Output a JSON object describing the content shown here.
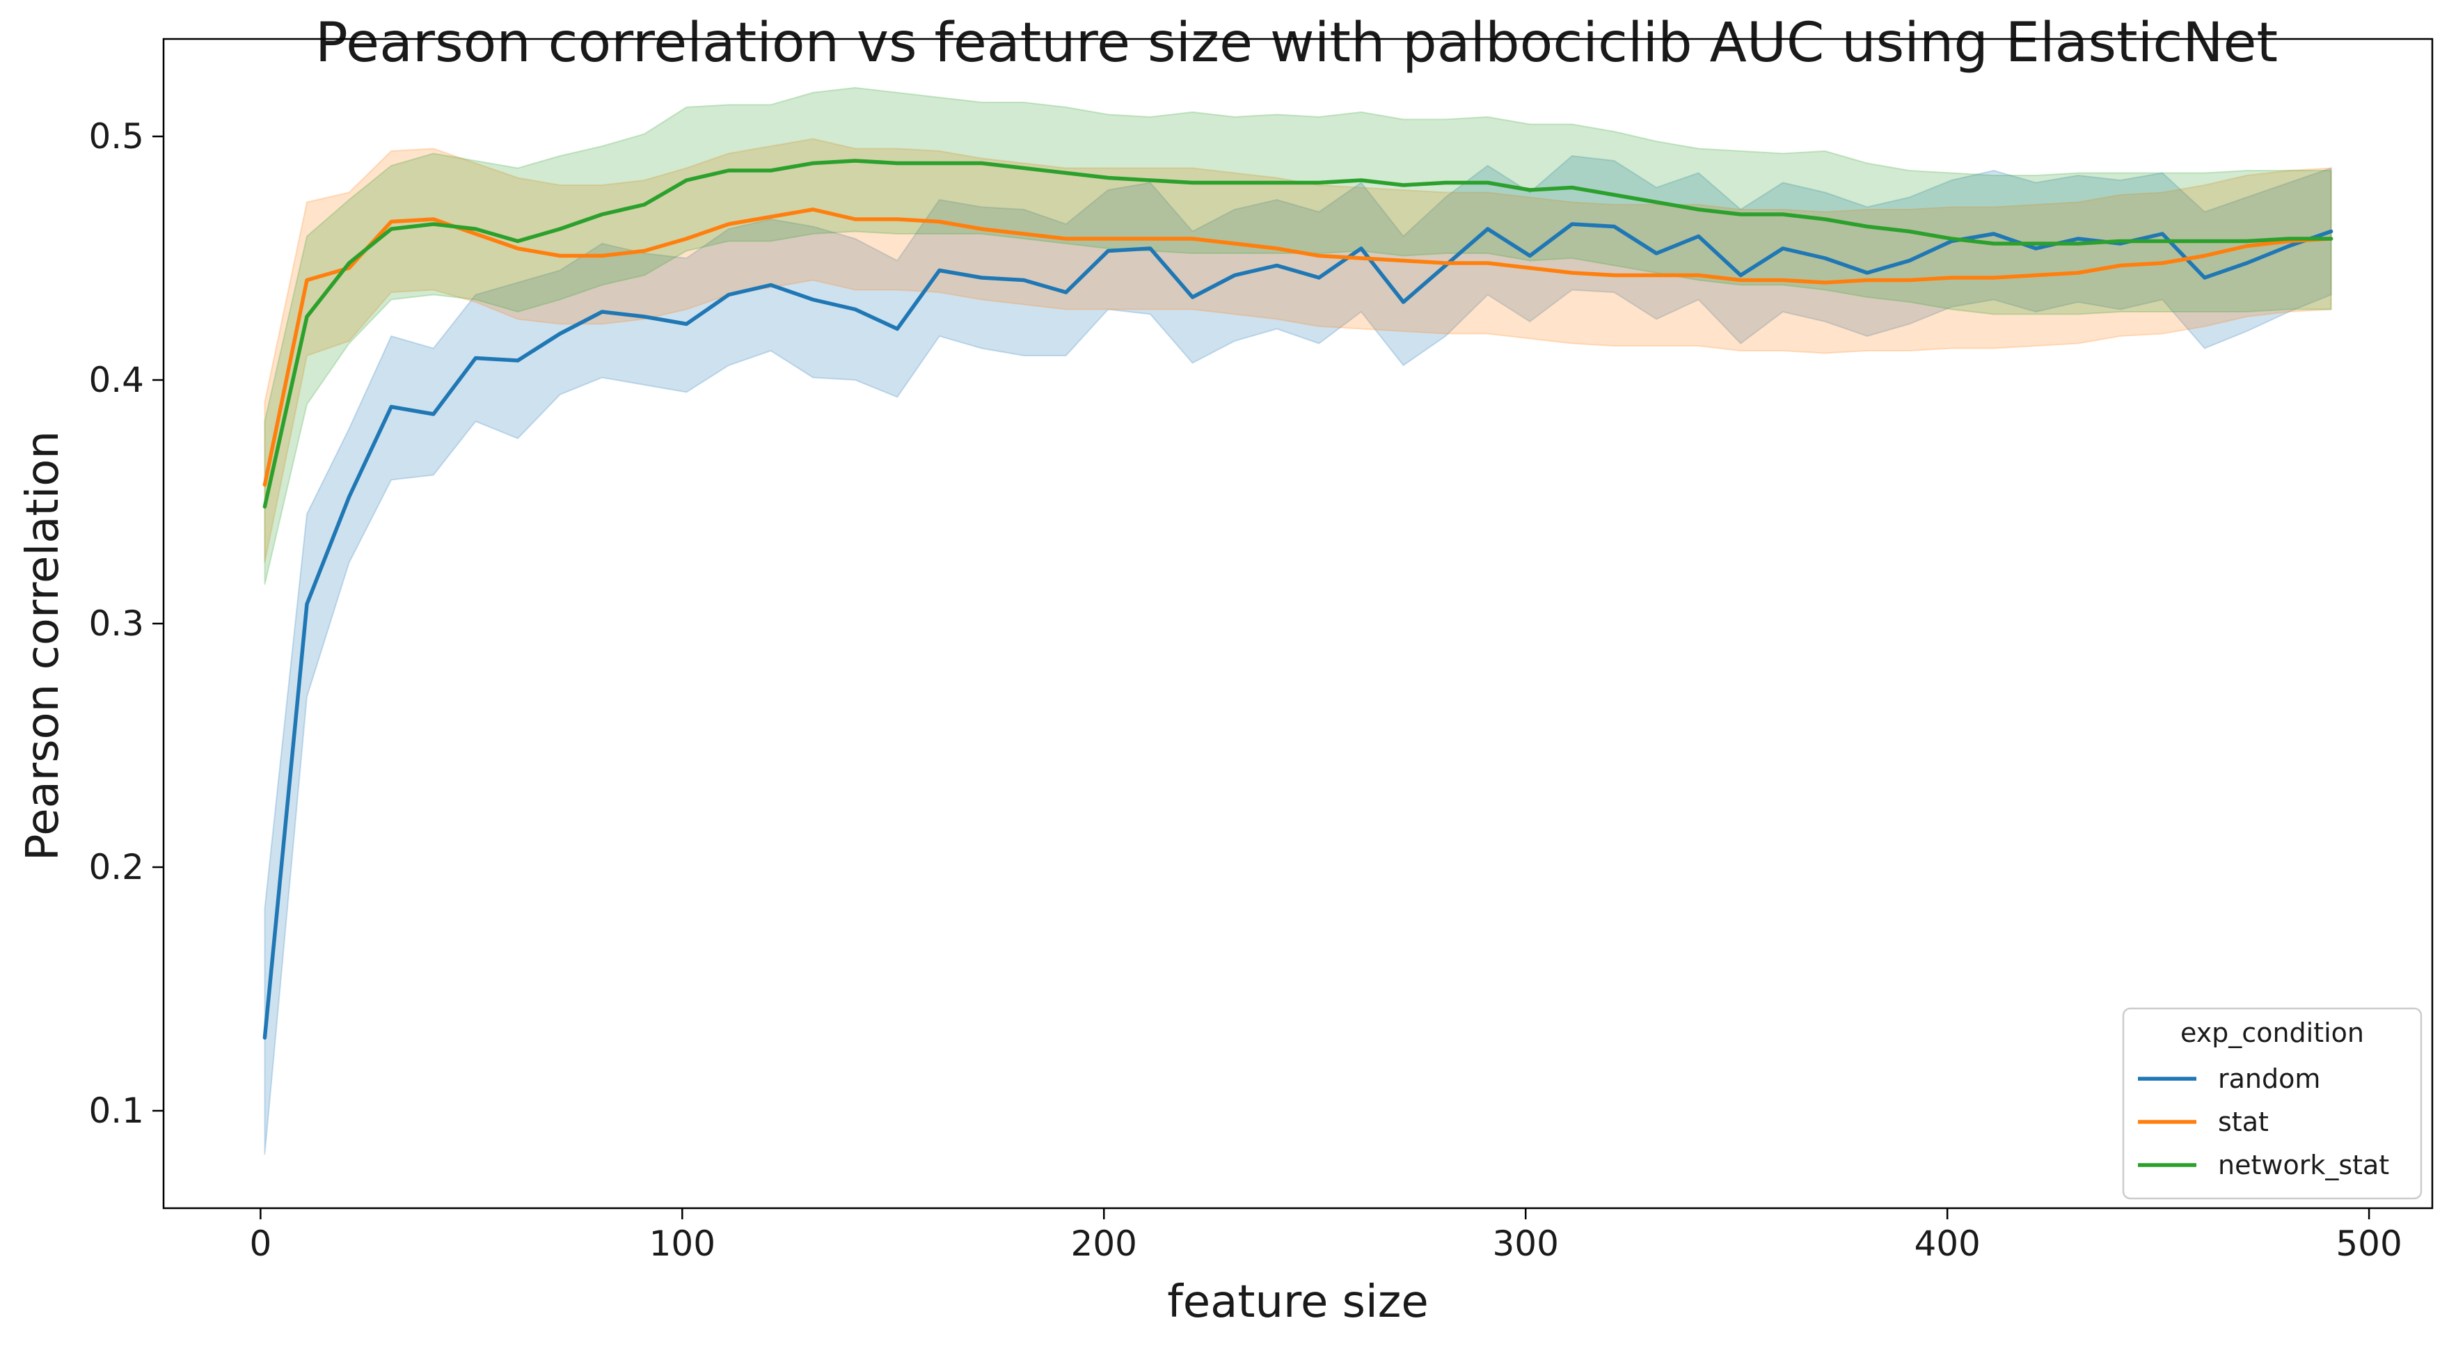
{
  "chart_data": {
    "type": "line",
    "title": "Pearson correlation vs feature size with palbociclib AUC using ElasticNet",
    "xlabel": "feature size",
    "ylabel": "Pearson correlation",
    "xlim": [
      -23,
      515
    ],
    "ylim": [
      0.06,
      0.54
    ],
    "xticks": [
      0,
      100,
      200,
      300,
      400,
      500
    ],
    "yticks": [
      0.1,
      0.2,
      0.3,
      0.4,
      0.5
    ],
    "xtick_labels": [
      "0",
      "100",
      "200",
      "300",
      "400",
      "500"
    ],
    "ytick_labels": [
      "0.1",
      "0.2",
      "0.3",
      "0.4",
      "0.5"
    ],
    "grid": false,
    "legend": {
      "title": "exp_condition",
      "placement": "bottom-right"
    },
    "x": [
      1,
      11,
      21,
      31,
      41,
      51,
      61,
      71,
      81,
      91,
      101,
      111,
      121,
      131,
      141,
      151,
      161,
      171,
      181,
      191,
      201,
      211,
      221,
      231,
      241,
      251,
      261,
      271,
      281,
      291,
      301,
      311,
      321,
      331,
      341,
      351,
      361,
      371,
      381,
      391,
      401,
      411,
      421,
      431,
      441,
      451,
      461,
      471,
      481,
      491
    ],
    "series": [
      {
        "name": "random",
        "color": "#1f77b4",
        "values": [
          0.13,
          0.308,
          0.352,
          0.389,
          0.386,
          0.409,
          0.408,
          0.419,
          0.428,
          0.426,
          0.423,
          0.435,
          0.439,
          0.433,
          0.429,
          0.421,
          0.445,
          0.442,
          0.441,
          0.436,
          0.453,
          0.454,
          0.434,
          0.443,
          0.447,
          0.442,
          0.454,
          0.432,
          0.447,
          0.462,
          0.451,
          0.464,
          0.463,
          0.452,
          0.459,
          0.443,
          0.454,
          0.45,
          0.444,
          0.449,
          0.457,
          0.46,
          0.454,
          0.458,
          0.456,
          0.46,
          0.442,
          0.448,
          0.455,
          0.461
        ],
        "lower": [
          0.082,
          0.27,
          0.325,
          0.359,
          0.361,
          0.383,
          0.376,
          0.394,
          0.401,
          0.398,
          0.395,
          0.406,
          0.412,
          0.401,
          0.4,
          0.393,
          0.418,
          0.413,
          0.41,
          0.41,
          0.429,
          0.427,
          0.407,
          0.416,
          0.421,
          0.415,
          0.428,
          0.406,
          0.418,
          0.435,
          0.424,
          0.437,
          0.436,
          0.425,
          0.433,
          0.415,
          0.428,
          0.424,
          0.418,
          0.423,
          0.43,
          0.433,
          0.428,
          0.432,
          0.429,
          0.433,
          0.413,
          0.42,
          0.428,
          0.435
        ],
        "upper": [
          0.183,
          0.345,
          0.38,
          0.418,
          0.413,
          0.435,
          0.44,
          0.445,
          0.456,
          0.452,
          0.45,
          0.462,
          0.466,
          0.463,
          0.458,
          0.449,
          0.474,
          0.471,
          0.47,
          0.464,
          0.478,
          0.481,
          0.461,
          0.47,
          0.474,
          0.469,
          0.481,
          0.459,
          0.475,
          0.488,
          0.477,
          0.492,
          0.49,
          0.479,
          0.485,
          0.47,
          0.481,
          0.477,
          0.471,
          0.475,
          0.482,
          0.486,
          0.481,
          0.484,
          0.482,
          0.485,
          0.469,
          0.475,
          0.481,
          0.487
        ]
      },
      {
        "name": "stat",
        "color": "#ff7f0e",
        "values": [
          0.357,
          0.441,
          0.446,
          0.465,
          0.466,
          0.46,
          0.454,
          0.451,
          0.451,
          0.453,
          0.458,
          0.464,
          0.467,
          0.47,
          0.466,
          0.466,
          0.465,
          0.462,
          0.46,
          0.458,
          0.458,
          0.458,
          0.458,
          0.456,
          0.454,
          0.451,
          0.45,
          0.449,
          0.448,
          0.448,
          0.446,
          0.444,
          0.443,
          0.443,
          0.443,
          0.441,
          0.441,
          0.44,
          0.441,
          0.441,
          0.442,
          0.442,
          0.443,
          0.444,
          0.447,
          0.448,
          0.451,
          0.455,
          0.457,
          0.458
        ],
        "lower": [
          0.325,
          0.41,
          0.416,
          0.436,
          0.437,
          0.432,
          0.425,
          0.423,
          0.423,
          0.425,
          0.429,
          0.435,
          0.438,
          0.441,
          0.437,
          0.437,
          0.436,
          0.433,
          0.431,
          0.429,
          0.429,
          0.429,
          0.429,
          0.427,
          0.425,
          0.422,
          0.421,
          0.42,
          0.419,
          0.419,
          0.417,
          0.415,
          0.414,
          0.414,
          0.414,
          0.412,
          0.412,
          0.411,
          0.412,
          0.412,
          0.413,
          0.413,
          0.414,
          0.415,
          0.418,
          0.419,
          0.422,
          0.426,
          0.428,
          0.429
        ],
        "upper": [
          0.391,
          0.473,
          0.477,
          0.494,
          0.495,
          0.489,
          0.483,
          0.48,
          0.48,
          0.482,
          0.487,
          0.493,
          0.496,
          0.499,
          0.495,
          0.495,
          0.494,
          0.491,
          0.489,
          0.487,
          0.487,
          0.487,
          0.487,
          0.485,
          0.483,
          0.48,
          0.479,
          0.478,
          0.477,
          0.477,
          0.475,
          0.473,
          0.472,
          0.472,
          0.472,
          0.47,
          0.47,
          0.469,
          0.47,
          0.47,
          0.471,
          0.471,
          0.472,
          0.473,
          0.476,
          0.477,
          0.48,
          0.484,
          0.486,
          0.487
        ]
      },
      {
        "name": "network_stat",
        "color": "#2ca02c",
        "values": [
          0.348,
          0.426,
          0.448,
          0.462,
          0.464,
          0.462,
          0.457,
          0.462,
          0.468,
          0.472,
          0.482,
          0.486,
          0.486,
          0.489,
          0.49,
          0.489,
          0.489,
          0.489,
          0.487,
          0.485,
          0.483,
          0.482,
          0.481,
          0.481,
          0.481,
          0.481,
          0.482,
          0.48,
          0.481,
          0.481,
          0.478,
          0.479,
          0.476,
          0.473,
          0.47,
          0.468,
          0.468,
          0.466,
          0.463,
          0.461,
          0.458,
          0.456,
          0.456,
          0.456,
          0.457,
          0.457,
          0.457,
          0.457,
          0.458,
          0.458
        ],
        "lower": [
          0.316,
          0.39,
          0.415,
          0.433,
          0.435,
          0.433,
          0.428,
          0.433,
          0.439,
          0.443,
          0.453,
          0.457,
          0.457,
          0.46,
          0.461,
          0.46,
          0.46,
          0.46,
          0.458,
          0.456,
          0.454,
          0.453,
          0.452,
          0.452,
          0.452,
          0.452,
          0.453,
          0.451,
          0.452,
          0.452,
          0.449,
          0.45,
          0.447,
          0.444,
          0.441,
          0.439,
          0.439,
          0.437,
          0.434,
          0.432,
          0.429,
          0.427,
          0.427,
          0.427,
          0.428,
          0.428,
          0.428,
          0.428,
          0.429,
          0.429
        ],
        "upper": [
          0.383,
          0.459,
          0.474,
          0.488,
          0.493,
          0.49,
          0.487,
          0.492,
          0.496,
          0.501,
          0.512,
          0.513,
          0.513,
          0.518,
          0.52,
          0.518,
          0.516,
          0.514,
          0.514,
          0.512,
          0.509,
          0.508,
          0.51,
          0.508,
          0.509,
          0.508,
          0.51,
          0.507,
          0.507,
          0.508,
          0.505,
          0.505,
          0.502,
          0.498,
          0.495,
          0.494,
          0.493,
          0.494,
          0.489,
          0.486,
          0.485,
          0.484,
          0.484,
          0.485,
          0.485,
          0.485,
          0.485,
          0.486,
          0.486,
          0.486
        ]
      }
    ]
  }
}
